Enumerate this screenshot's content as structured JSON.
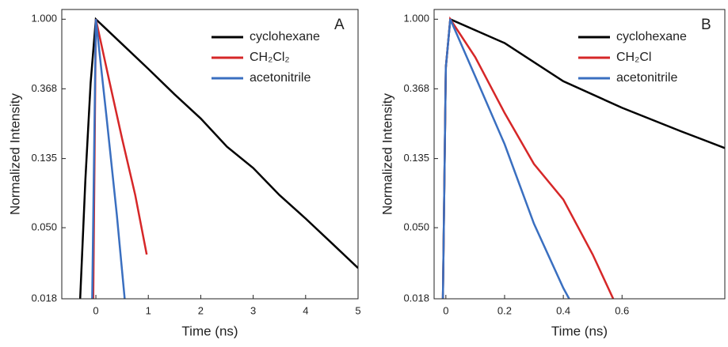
{
  "chart_data": [
    {
      "type": "line",
      "panel_label": "A",
      "x_label": "Time (ns)",
      "y_label": "Normalized Intensity",
      "log_y": true,
      "legend": "upper right",
      "xlim": [
        -0.65,
        5
      ],
      "xticks": [
        0,
        1,
        2,
        3,
        4,
        5
      ],
      "ylim": [
        0.018,
        1.15
      ],
      "yticks": [
        0.018,
        {
          "value": 0.05,
          "label": "0.050"
        },
        0.135,
        0.368,
        {
          "value": 1,
          "label": "1.000"
        }
      ],
      "series": [
        {
          "name": "cyclohexane",
          "color": "#000000",
          "x": [
            -0.3,
            -0.2,
            -0.1,
            0,
            0.5,
            1,
            1.5,
            2,
            2.5,
            3,
            3.5,
            4,
            4.5,
            5
          ],
          "values": [
            0.018,
            0.1,
            0.4,
            1.0,
            0.7,
            0.49,
            0.34,
            0.24,
            0.16,
            0.118,
            0.08,
            0.057,
            0.04,
            0.028
          ]
        },
        {
          "name": "CH₂Cl₂",
          "color": "#d62728",
          "x": [
            -0.05,
            0,
            0.25,
            0.5,
            0.75,
            0.97
          ],
          "values": [
            0.018,
            1.0,
            0.42,
            0.18,
            0.08,
            0.034
          ]
        },
        {
          "name": "acetonitrile",
          "color": "#3a6fc0",
          "x": [
            -0.07,
            0,
            0.2,
            0.4,
            0.55
          ],
          "values": [
            0.018,
            1.0,
            0.25,
            0.06,
            0.018
          ]
        }
      ]
    },
    {
      "type": "line",
      "panel_label": "B",
      "x_label": "Time (ns)",
      "y_label": "Normalized Intensity",
      "log_y": true,
      "legend": "upper right",
      "xlim": [
        -0.04,
        0.95
      ],
      "xticks": [
        0,
        0.2,
        0.4,
        0.6
      ],
      "ylim": [
        0.018,
        1.15
      ],
      "yticks": [
        0.018,
        {
          "value": 0.05,
          "label": "0.050"
        },
        0.135,
        0.368,
        {
          "value": 1,
          "label": "1.000"
        }
      ],
      "series": [
        {
          "name": "cyclohexane",
          "color": "#000000",
          "x": [
            -0.01,
            0,
            0.015,
            0.2,
            0.4,
            0.6,
            0.8,
            0.95
          ],
          "values": [
            0.018,
            0.5,
            1.0,
            0.71,
            0.41,
            0.28,
            0.2,
            0.157
          ]
        },
        {
          "name": "CH₂Cl",
          "color": "#d62728",
          "x": [
            -0.01,
            0,
            0.015,
            0.1,
            0.2,
            0.3,
            0.4,
            0.5,
            0.57
          ],
          "values": [
            0.018,
            0.5,
            1.0,
            0.58,
            0.26,
            0.125,
            0.075,
            0.034,
            0.018
          ]
        },
        {
          "name": "acetonitrile",
          "color": "#3a6fc0",
          "x": [
            -0.01,
            0,
            0.015,
            0.1,
            0.2,
            0.3,
            0.4,
            0.42
          ],
          "values": [
            0.018,
            0.5,
            1.0,
            0.44,
            0.166,
            0.053,
            0.021,
            0.018
          ]
        }
      ]
    }
  ]
}
